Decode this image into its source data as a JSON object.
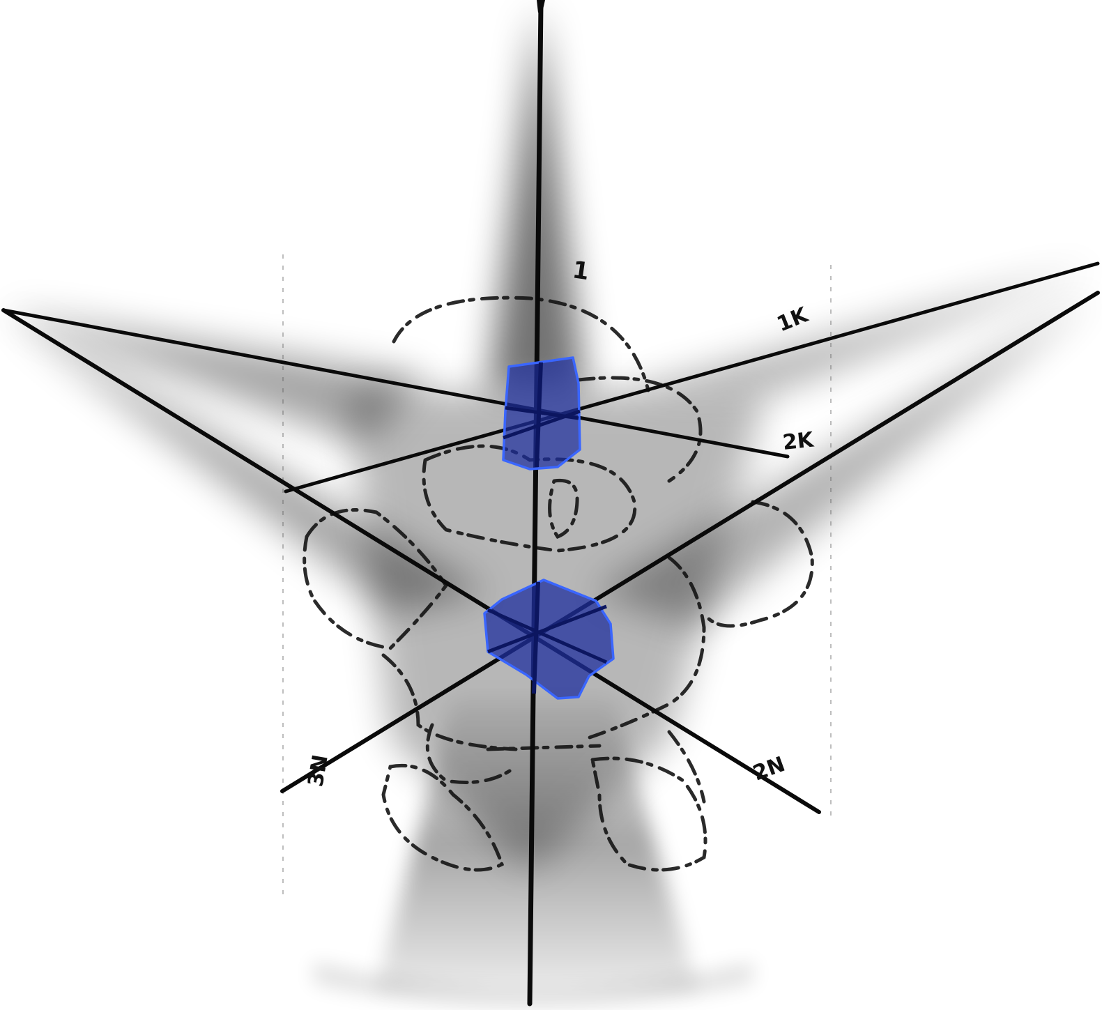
{
  "colors": {
    "background": "#ffffff",
    "axis_line": "#0a0a0a",
    "shadow": "#000000",
    "sketch": "#141414",
    "cube_fill": "#1f2f9e",
    "cube_outline": "#3a66ff"
  },
  "axes": {
    "vertical_label": "1",
    "upper_right_label": "1K",
    "mid_right_label": "2K",
    "lower_right_label": "2N",
    "lower_left_label": "3N"
  }
}
